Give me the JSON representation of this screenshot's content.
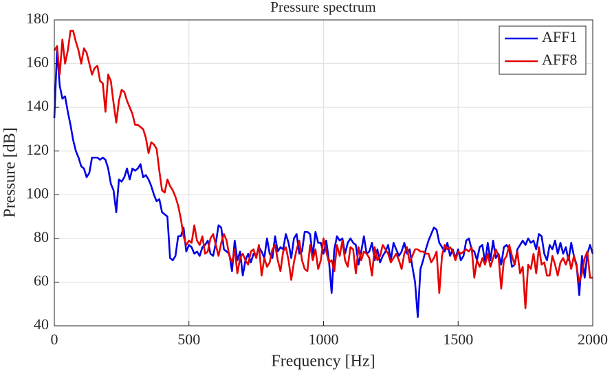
{
  "chart_data": {
    "type": "line",
    "title": "Pressure spectrum",
    "xlabel": "Frequency [Hz]",
    "ylabel": "Pressure [dB]",
    "x": [
      0,
      10,
      20,
      30,
      40,
      50,
      60,
      70,
      80,
      90,
      100,
      110,
      120,
      130,
      140,
      150,
      160,
      170,
      180,
      190,
      200,
      210,
      220,
      230,
      240,
      250,
      260,
      270,
      280,
      290,
      300,
      310,
      320,
      330,
      340,
      350,
      360,
      370,
      380,
      390,
      400,
      410,
      420,
      430,
      440,
      450,
      460,
      470,
      480,
      490,
      500,
      510,
      520,
      530,
      540,
      550,
      560,
      570,
      580,
      590,
      600,
      610,
      620,
      630,
      640,
      650,
      660,
      670,
      680,
      690,
      700,
      710,
      720,
      730,
      740,
      750,
      760,
      770,
      780,
      790,
      800,
      810,
      820,
      830,
      840,
      850,
      860,
      870,
      880,
      890,
      900,
      910,
      920,
      930,
      940,
      950,
      960,
      970,
      980,
      990,
      1000,
      1010,
      1020,
      1030,
      1040,
      1050,
      1060,
      1070,
      1080,
      1090,
      1100,
      1110,
      1120,
      1130,
      1140,
      1150,
      1160,
      1170,
      1180,
      1190,
      1200,
      1210,
      1220,
      1230,
      1240,
      1250,
      1260,
      1270,
      1280,
      1290,
      1300,
      1310,
      1320,
      1330,
      1340,
      1350,
      1360,
      1370,
      1380,
      1390,
      1400,
      1410,
      1420,
      1430,
      1440,
      1450,
      1460,
      1470,
      1480,
      1490,
      1500,
      1510,
      1520,
      1530,
      1540,
      1550,
      1560,
      1570,
      1580,
      1590,
      1600,
      1610,
      1620,
      1630,
      1640,
      1650,
      1660,
      1670,
      1680,
      1690,
      1700,
      1710,
      1720,
      1730,
      1740,
      1750,
      1760,
      1770,
      1780,
      1790,
      1800,
      1810,
      1820,
      1830,
      1840,
      1850,
      1860,
      1870,
      1880,
      1890,
      1900,
      1910,
      1920,
      1930,
      1940,
      1950,
      1960,
      1970,
      1980,
      1990,
      2000
    ],
    "series": [
      {
        "name": "AFF1",
        "color": "#0000e6",
        "values": [
          135,
          166,
          150,
          144,
          145,
          138,
          132,
          125,
          120,
          117,
          113,
          112,
          108,
          110,
          117,
          117,
          117,
          116,
          117,
          116,
          112,
          105,
          102,
          92,
          107,
          106,
          108,
          112,
          107,
          112,
          111,
          112,
          114,
          108,
          109,
          107,
          104,
          100,
          97,
          98,
          92,
          91,
          90,
          71,
          70,
          72,
          81,
          81,
          85,
          74,
          77,
          76,
          73,
          74,
          72,
          76,
          77,
          79,
          73,
          72,
          78,
          86,
          85,
          75,
          74,
          73,
          65,
          79,
          70,
          74,
          63,
          70,
          73,
          69,
          73,
          72,
          76,
          74,
          71,
          80,
          73,
          71,
          81,
          74,
          76,
          75,
          82,
          78,
          71,
          80,
          82,
          73,
          74,
          83,
          83,
          82,
          72,
          83,
          78,
          78,
          73,
          79,
          70,
          55,
          75,
          81,
          79,
          80,
          73,
          78,
          80,
          78,
          77,
          68,
          74,
          81,
          73,
          74,
          78,
          70,
          75,
          69,
          72,
          74,
          77,
          70,
          78,
          75,
          72,
          74,
          78,
          73,
          75,
          67,
          60,
          44,
          66,
          70,
          75,
          79,
          82,
          85,
          84,
          78,
          76,
          74,
          78,
          72,
          75,
          71,
          75,
          70,
          72,
          79,
          80,
          75,
          74,
          70,
          76,
          77,
          69,
          78,
          70,
          79,
          71,
          73,
          68,
          76,
          77,
          75,
          67,
          68,
          75,
          77,
          79,
          77,
          80,
          78,
          79,
          75,
          82,
          81,
          73,
          70,
          77,
          75,
          79,
          73,
          78,
          73,
          76,
          70,
          78,
          72,
          68,
          54,
          72,
          62,
          73,
          77,
          73
        ]
      },
      {
        "name": "AFF8",
        "color": "#e60000",
        "values": [
          166,
          168,
          155,
          171,
          160,
          166,
          175,
          175,
          170,
          166,
          160,
          167,
          165,
          160,
          155,
          158,
          159,
          152,
          151,
          138,
          155,
          152,
          142,
          133,
          143,
          148,
          147,
          143,
          140,
          137,
          132,
          132,
          131,
          130,
          126,
          119,
          124,
          123,
          121,
          111,
          102,
          101,
          107,
          104,
          102,
          99,
          95,
          89,
          81,
          77,
          79,
          78,
          86,
          79,
          77,
          81,
          73,
          74,
          80,
          82,
          77,
          72,
          78,
          82,
          79,
          72,
          69,
          75,
          64,
          71,
          73,
          70,
          68,
          74,
          75,
          71,
          77,
          63,
          71,
          67,
          69,
          75,
          77,
          70,
          65,
          74,
          76,
          70,
          61,
          69,
          75,
          79,
          70,
          66,
          65,
          77,
          70,
          75,
          66,
          70,
          80,
          74,
          69,
          70,
          65,
          77,
          72,
          79,
          70,
          67,
          76,
          75,
          64,
          76,
          70,
          74,
          73,
          71,
          63,
          76,
          70,
          72,
          77,
          75,
          73,
          69,
          71,
          73,
          70,
          66,
          73,
          76,
          69,
          72,
          75,
          75,
          74,
          74,
          73,
          73,
          69,
          71,
          74,
          55,
          72,
          77,
          75,
          76,
          74,
          70,
          74,
          73,
          74,
          75,
          74,
          76,
          62,
          70,
          67,
          71,
          68,
          73,
          67,
          71,
          75,
          72,
          57,
          70,
          72,
          77,
          72,
          68,
          74,
          64,
          67,
          48,
          68,
          66,
          73,
          64,
          76,
          68,
          69,
          63,
          63,
          72,
          68,
          63,
          69,
          71,
          68,
          72,
          66,
          72,
          67,
          60,
          64,
          71,
          74,
          62,
          62
        ]
      }
    ],
    "xlim": [
      0,
      2000
    ],
    "xticks": [
      0,
      500,
      1000,
      1500,
      2000
    ],
    "ylim": [
      40,
      180
    ],
    "yticks": [
      40,
      60,
      80,
      100,
      120,
      140,
      160,
      180
    ],
    "grid": true,
    "legend": "north-east"
  }
}
